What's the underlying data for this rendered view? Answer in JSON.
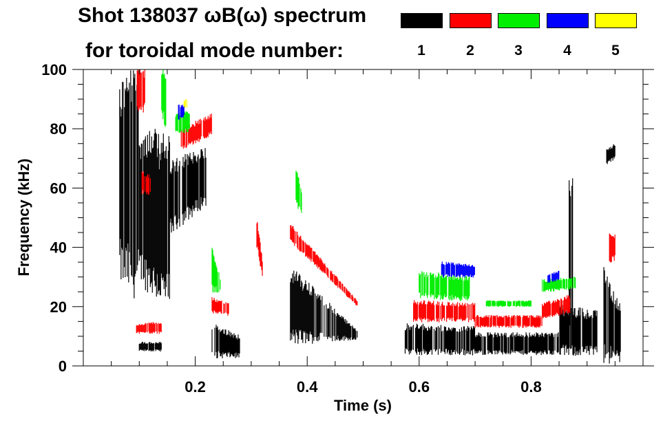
{
  "header": {
    "title": "Shot 138037 ωB(ω) spectrum",
    "subtitle": "for toroidal mode number:"
  },
  "legend": [
    {
      "label": "1",
      "color": "#000000"
    },
    {
      "label": "2",
      "color": "#ff0000"
    },
    {
      "label": "3",
      "color": "#00ee00"
    },
    {
      "label": "4",
      "color": "#0000ff"
    },
    {
      "label": "5",
      "color": "#ffff00"
    }
  ],
  "chart_data": {
    "type": "heatmap",
    "title": "Shot 138037 ωB(ω) spectrum",
    "xlabel": "Time (s)",
    "ylabel": "Frequency (kHz)",
    "xlim": [
      0,
      1
    ],
    "ylim": [
      0,
      100
    ],
    "xticks": [
      0.2,
      0.4,
      0.6,
      0.8
    ],
    "xtick_labels": [
      "0.2",
      "0.4",
      "0.6",
      "0.8"
    ],
    "xminor": 0.05,
    "yticks": [
      0,
      20,
      40,
      60,
      80,
      100
    ],
    "ytick_labels": [
      "0",
      "20",
      "40",
      "60",
      "80",
      "100"
    ],
    "yminor": 5,
    "mode_colors": {
      "1": "#000000",
      "2": "#ff0000",
      "3": "#00ee00",
      "4": "#0000ff",
      "5": "#ffff00"
    },
    "patches": [
      {
        "mode": 1,
        "t": [
          0.065,
          0.1
        ],
        "f_start": [
          30,
          95
        ],
        "f_end": [
          25,
          100
        ]
      },
      {
        "mode": 1,
        "t": [
          0.1,
          0.155
        ],
        "f_start": [
          30,
          80
        ],
        "f_end": [
          20,
          75
        ]
      },
      {
        "mode": 1,
        "t": [
          0.1,
          0.14
        ],
        "f_start": [
          5,
          8
        ],
        "f_end": [
          5,
          8
        ]
      },
      {
        "mode": 1,
        "t": [
          0.155,
          0.22
        ],
        "f_start": [
          45,
          68
        ],
        "f_end": [
          55,
          74
        ]
      },
      {
        "mode": 1,
        "t": [
          0.23,
          0.28
        ],
        "f_start": [
          3,
          14
        ],
        "f_end": [
          3,
          10
        ]
      },
      {
        "mode": 1,
        "t": [
          0.37,
          0.49
        ],
        "f_start": [
          8,
          33
        ],
        "f_end": [
          9,
          12
        ]
      },
      {
        "mode": 1,
        "t": [
          0.575,
          0.7
        ],
        "f_start": [
          4,
          14
        ],
        "f_end": [
          4,
          13
        ]
      },
      {
        "mode": 1,
        "t": [
          0.7,
          0.85
        ],
        "f_start": [
          4,
          11
        ],
        "f_end": [
          4,
          11
        ]
      },
      {
        "mode": 1,
        "t": [
          0.85,
          0.92
        ],
        "f_start": [
          4,
          20
        ],
        "f_end": [
          4,
          18
        ]
      },
      {
        "mode": 1,
        "t": [
          0.868,
          0.875
        ],
        "f_start": [
          8,
          70
        ],
        "f_end": [
          8,
          68
        ]
      },
      {
        "mode": 1,
        "t": [
          0.93,
          0.96
        ],
        "f_start": [
          2,
          33
        ],
        "f_end": [
          2,
          20
        ]
      },
      {
        "mode": 1,
        "t": [
          0.935,
          0.95
        ],
        "f_start": [
          68,
          73
        ],
        "f_end": [
          70,
          75
        ]
      },
      {
        "mode": 2,
        "t": [
          0.095,
          0.11
        ],
        "f_start": [
          85,
          100
        ],
        "f_end": [
          86,
          100
        ]
      },
      {
        "mode": 2,
        "t": [
          0.105,
          0.12
        ],
        "f_start": [
          58,
          66
        ],
        "f_end": [
          58,
          64
        ]
      },
      {
        "mode": 2,
        "t": [
          0.095,
          0.14
        ],
        "f_start": [
          11,
          14
        ],
        "f_end": [
          11,
          15
        ]
      },
      {
        "mode": 2,
        "t": [
          0.175,
          0.23
        ],
        "f_start": [
          73,
          80
        ],
        "f_end": [
          78,
          85
        ]
      },
      {
        "mode": 2,
        "t": [
          0.23,
          0.26
        ],
        "f_start": [
          18,
          23
        ],
        "f_end": [
          17,
          21
        ]
      },
      {
        "mode": 2,
        "t": [
          0.31,
          0.32
        ],
        "f_start": [
          40,
          50
        ],
        "f_end": [
          30,
          36
        ]
      },
      {
        "mode": 2,
        "t": [
          0.37,
          0.49
        ],
        "f_start": [
          42,
          48
        ],
        "f_end": [
          20,
          22
        ]
      },
      {
        "mode": 2,
        "t": [
          0.59,
          0.7
        ],
        "f_start": [
          15,
          22
        ],
        "f_end": [
          15,
          21
        ]
      },
      {
        "mode": 2,
        "t": [
          0.7,
          0.82
        ],
        "f_start": [
          13,
          17
        ],
        "f_end": [
          13,
          17
        ]
      },
      {
        "mode": 2,
        "t": [
          0.82,
          0.87
        ],
        "f_start": [
          16,
          21
        ],
        "f_end": [
          18,
          24
        ]
      },
      {
        "mode": 2,
        "t": [
          0.94,
          0.95
        ],
        "f_start": [
          35,
          45
        ],
        "f_end": [
          36,
          44
        ]
      },
      {
        "mode": 3,
        "t": [
          0.14,
          0.148
        ],
        "f_start": [
          85,
          100
        ],
        "f_end": [
          80,
          100
        ]
      },
      {
        "mode": 3,
        "t": [
          0.165,
          0.19
        ],
        "f_start": [
          78,
          85
        ],
        "f_end": [
          79,
          86
        ]
      },
      {
        "mode": 3,
        "t": [
          0.23,
          0.245
        ],
        "f_start": [
          25,
          40
        ],
        "f_end": [
          25,
          30
        ]
      },
      {
        "mode": 3,
        "t": [
          0.38,
          0.39
        ],
        "f_start": [
          55,
          66
        ],
        "f_end": [
          50,
          60
        ]
      },
      {
        "mode": 3,
        "t": [
          0.6,
          0.69
        ],
        "f_start": [
          23,
          32
        ],
        "f_end": [
          22,
          30
        ]
      },
      {
        "mode": 3,
        "t": [
          0.72,
          0.8
        ],
        "f_start": [
          20,
          22
        ],
        "f_end": [
          20,
          22
        ]
      },
      {
        "mode": 3,
        "t": [
          0.82,
          0.88
        ],
        "f_start": [
          25,
          29
        ],
        "f_end": [
          26,
          30
        ]
      },
      {
        "mode": 4,
        "t": [
          0.17,
          0.18
        ],
        "f_start": [
          83,
          88
        ],
        "f_end": [
          84,
          88
        ]
      },
      {
        "mode": 4,
        "t": [
          0.64,
          0.7
        ],
        "f_start": [
          30,
          35
        ],
        "f_end": [
          30,
          34
        ]
      },
      {
        "mode": 4,
        "t": [
          0.83,
          0.85
        ],
        "f_start": [
          28,
          31
        ],
        "f_end": [
          29,
          32
        ]
      },
      {
        "mode": 5,
        "t": [
          0.18,
          0.185
        ],
        "f_start": [
          87,
          90
        ],
        "f_end": [
          87,
          90
        ]
      }
    ]
  }
}
